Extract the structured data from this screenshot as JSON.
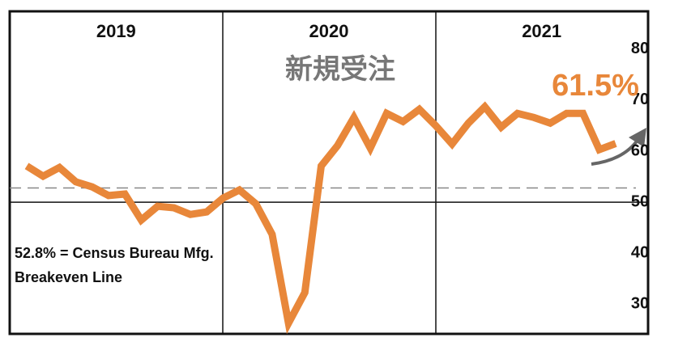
{
  "chart_data": {
    "type": "line",
    "title": "新規受注",
    "period_labels": [
      "2019",
      "2020",
      "2021"
    ],
    "series": [
      {
        "color": "#e8873a",
        "values": [
          57.1,
          55.1,
          56.8,
          54.0,
          53.0,
          51.3,
          51.6,
          46.5,
          49.2,
          48.9,
          47.6,
          48.1,
          50.8,
          52.4,
          49.7,
          43.7,
          26.3,
          32.3,
          57.1,
          61.1,
          66.6,
          60.6,
          67.4,
          65.8,
          68.2,
          65.0,
          61.4,
          65.5,
          68.7,
          64.7,
          67.4,
          66.6,
          65.5,
          67.4,
          67.4,
          60.3,
          61.5
        ]
      }
    ],
    "last_value_label": "61.5%",
    "ylim": [
      24.2,
      87.4
    ],
    "yticks": [
      30,
      40,
      50,
      60,
      70,
      80
    ],
    "reference_line": {
      "value": 52.8,
      "label_lines": [
        "52.8% = Census Bureau Mfg.",
        "Breakeven Line"
      ]
    }
  }
}
